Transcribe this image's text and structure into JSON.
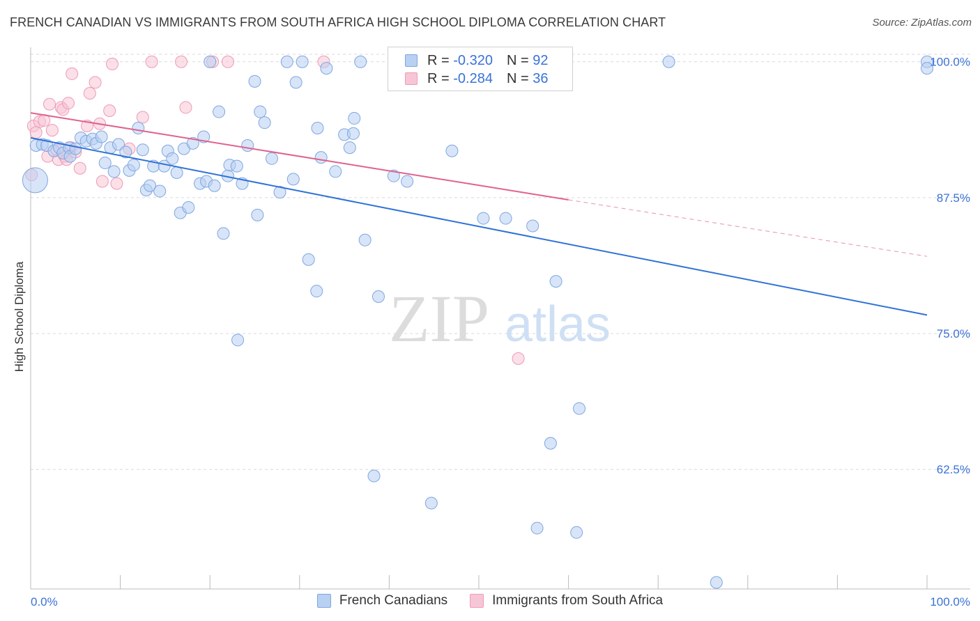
{
  "title": "FRENCH CANADIAN VS IMMIGRANTS FROM SOUTH AFRICA HIGH SCHOOL DIPLOMA CORRELATION CHART",
  "source": "Source: ZipAtlas.com",
  "watermark": {
    "zip": "ZIP",
    "atlas": "atlas"
  },
  "colors": {
    "blue_fill": "#b8d0f2",
    "blue_stroke": "#7ea6e0",
    "blue_line": "#2f72d6",
    "pink_fill": "#f7c6d6",
    "pink_stroke": "#ee9ab6",
    "pink_line": "#e0618e",
    "tick_text": "#3a72d8",
    "grid": "#d9d9d9"
  },
  "legend": {
    "r_label": "R =",
    "n_label": "N =",
    "series": [
      {
        "name": "French Canadians",
        "r": "-0.320",
        "n": "92"
      },
      {
        "name": "Immigrants from South Africa",
        "r": "-0.284",
        "n": "36"
      }
    ]
  },
  "chart_data": {
    "type": "scatter",
    "title": "FRENCH CANADIAN VS IMMIGRANTS FROM SOUTH AFRICA HIGH SCHOOL DIPLOMA CORRELATION CHART",
    "xlabel": "",
    "ylabel": "High School Diploma",
    "xlim": [
      0,
      100
    ],
    "ylim": [
      51.5,
      101.2
    ],
    "x_tick_labels": [
      "0.0%",
      "100.0%"
    ],
    "y_ticks": [
      62.5,
      75.0,
      87.5,
      100.0
    ],
    "y_tick_labels": [
      "62.5%",
      "75.0%",
      "87.5%",
      "100.0%"
    ],
    "grid": true,
    "legend_position": "top-center",
    "series": [
      {
        "name": "French Canadians",
        "r": -0.32,
        "n": 92,
        "trend": {
          "x": [
            0,
            100
          ],
          "y": [
            93.0,
            76.7
          ]
        },
        "points": [
          [
            0.5,
            89.1
          ],
          [
            0.6,
            92.3
          ],
          [
            1.3,
            92.4
          ],
          [
            1.8,
            92.3
          ],
          [
            2.6,
            91.8
          ],
          [
            3.2,
            92.1
          ],
          [
            3.6,
            91.6
          ],
          [
            4.3,
            92.1
          ],
          [
            4.4,
            91.3
          ],
          [
            5.0,
            92.0
          ],
          [
            5.6,
            93.0
          ],
          [
            6.2,
            92.7
          ],
          [
            6.9,
            92.9
          ],
          [
            7.3,
            92.5
          ],
          [
            7.9,
            93.1
          ],
          [
            8.3,
            90.7
          ],
          [
            8.9,
            92.1
          ],
          [
            9.3,
            89.9
          ],
          [
            9.8,
            92.4
          ],
          [
            10.6,
            91.7
          ],
          [
            11.0,
            90.0
          ],
          [
            11.5,
            90.5
          ],
          [
            12.0,
            93.9
          ],
          [
            12.5,
            91.9
          ],
          [
            12.9,
            88.2
          ],
          [
            13.3,
            88.6
          ],
          [
            13.7,
            90.4
          ],
          [
            14.4,
            88.1
          ],
          [
            14.9,
            90.4
          ],
          [
            15.3,
            91.8
          ],
          [
            15.8,
            91.1
          ],
          [
            16.3,
            89.8
          ],
          [
            16.7,
            86.1
          ],
          [
            17.1,
            92.0
          ],
          [
            17.6,
            86.6
          ],
          [
            18.1,
            92.5
          ],
          [
            18.9,
            88.8
          ],
          [
            19.3,
            93.1
          ],
          [
            19.6,
            89.0
          ],
          [
            20.5,
            88.6
          ],
          [
            21.0,
            95.4
          ],
          [
            21.5,
            84.2
          ],
          [
            22.0,
            89.5
          ],
          [
            22.2,
            90.5
          ],
          [
            23.0,
            90.4
          ],
          [
            23.1,
            74.4
          ],
          [
            23.6,
            88.8
          ],
          [
            24.2,
            92.3
          ],
          [
            25.0,
            98.2
          ],
          [
            25.3,
            85.9
          ],
          [
            25.6,
            95.4
          ],
          [
            26.1,
            94.4
          ],
          [
            26.9,
            91.1
          ],
          [
            27.8,
            88.0
          ],
          [
            28.6,
            100.0
          ],
          [
            29.3,
            89.2
          ],
          [
            29.6,
            98.1
          ],
          [
            30.3,
            100.0
          ],
          [
            31.0,
            81.8
          ],
          [
            31.9,
            78.9
          ],
          [
            32.0,
            93.9
          ],
          [
            32.4,
            91.2
          ],
          [
            33.0,
            99.4
          ],
          [
            34.0,
            89.9
          ],
          [
            35.0,
            93.3
          ],
          [
            35.6,
            92.1
          ],
          [
            36.0,
            93.4
          ],
          [
            36.1,
            94.8
          ],
          [
            36.8,
            100.0
          ],
          [
            37.3,
            83.6
          ],
          [
            38.3,
            61.9
          ],
          [
            38.8,
            78.4
          ],
          [
            40.5,
            89.5
          ],
          [
            42.0,
            89.0
          ],
          [
            44.7,
            59.4
          ],
          [
            47.0,
            91.8
          ],
          [
            47.5,
            100.0
          ],
          [
            50.5,
            85.6
          ],
          [
            53.0,
            85.6
          ],
          [
            55.0,
            100.0
          ],
          [
            56.0,
            84.9
          ],
          [
            56.5,
            57.1
          ],
          [
            58.0,
            64.9
          ],
          [
            58.6,
            79.8
          ],
          [
            60.9,
            56.7
          ],
          [
            61.2,
            68.1
          ],
          [
            71.2,
            100.0
          ],
          [
            76.5,
            52.1
          ],
          [
            100.0,
            100.0
          ],
          [
            100.0,
            99.4
          ],
          [
            45.0,
            100.0
          ],
          [
            20.0,
            100.0
          ]
        ],
        "large_point": [
          0.5,
          89.1
        ]
      },
      {
        "name": "Immigrants from South Africa",
        "r": -0.284,
        "n": 36,
        "trend": {
          "x": [
            0,
            60
          ],
          "y": [
            95.3,
            87.3
          ]
        },
        "trend_dashed": {
          "x": [
            60,
            100
          ],
          "y": [
            87.3,
            82.1
          ]
        },
        "points": [
          [
            0.1,
            89.6
          ],
          [
            0.3,
            94.1
          ],
          [
            0.6,
            93.5
          ],
          [
            1.0,
            94.5
          ],
          [
            1.5,
            94.6
          ],
          [
            1.9,
            91.3
          ],
          [
            2.1,
            96.1
          ],
          [
            2.4,
            93.7
          ],
          [
            2.9,
            91.9
          ],
          [
            3.1,
            91.0
          ],
          [
            3.4,
            95.8
          ],
          [
            3.6,
            95.6
          ],
          [
            3.8,
            91.3
          ],
          [
            4.0,
            91.0
          ],
          [
            4.2,
            96.2
          ],
          [
            4.5,
            92.1
          ],
          [
            4.6,
            98.9
          ],
          [
            5.0,
            91.7
          ],
          [
            5.5,
            90.2
          ],
          [
            6.3,
            94.1
          ],
          [
            6.6,
            97.1
          ],
          [
            7.2,
            98.1
          ],
          [
            7.7,
            94.3
          ],
          [
            8.0,
            89.0
          ],
          [
            8.8,
            95.5
          ],
          [
            9.1,
            99.8
          ],
          [
            9.6,
            88.8
          ],
          [
            11.0,
            92.0
          ],
          [
            12.5,
            94.9
          ],
          [
            13.5,
            100.0
          ],
          [
            16.8,
            100.0
          ],
          [
            17.3,
            95.8
          ],
          [
            20.3,
            100.0
          ],
          [
            22.0,
            100.0
          ],
          [
            32.7,
            100.0
          ],
          [
            54.4,
            72.7
          ]
        ]
      }
    ]
  }
}
